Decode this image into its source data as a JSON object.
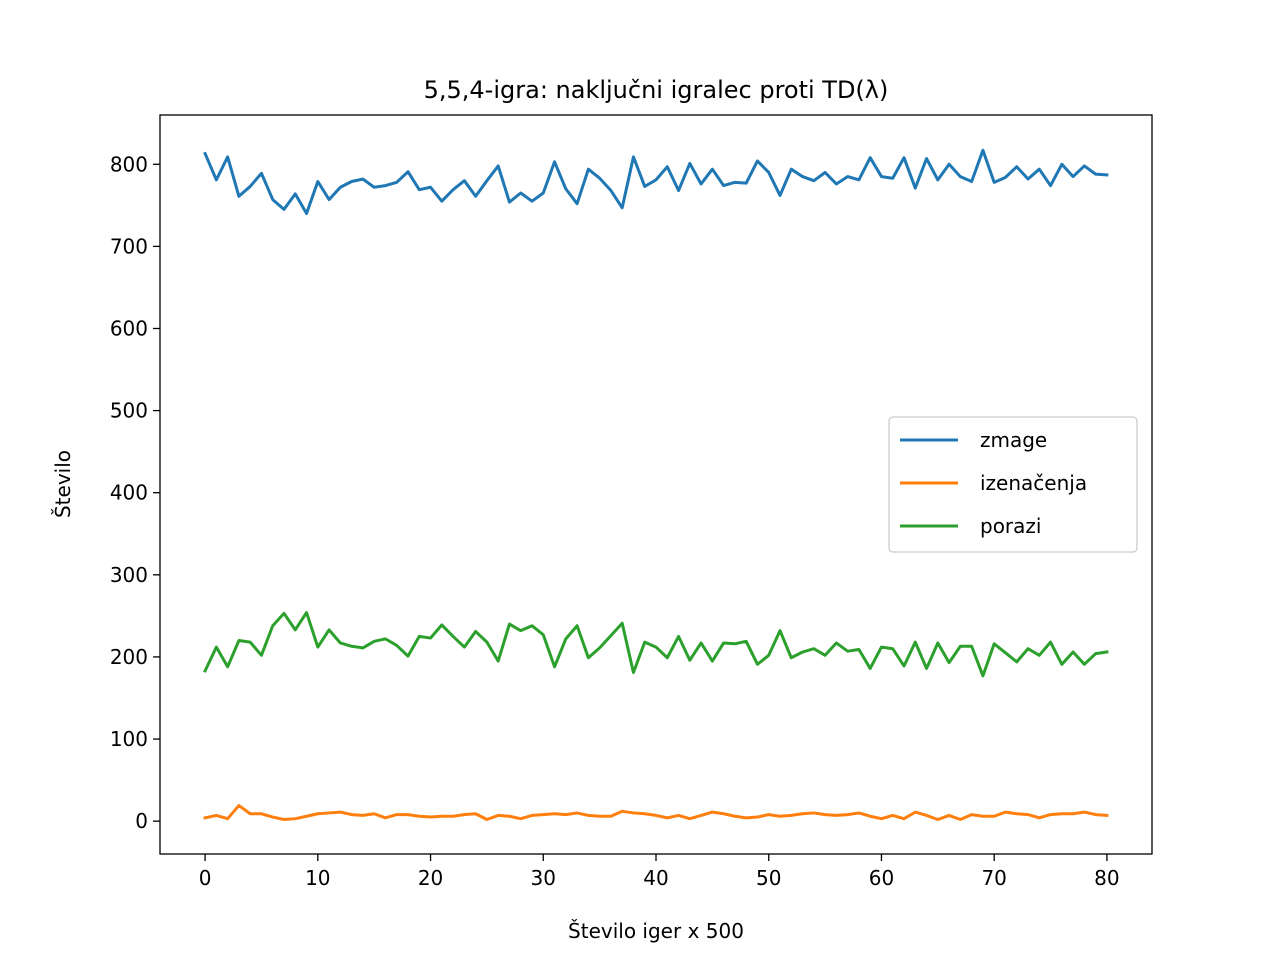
{
  "chart_data": {
    "type": "line",
    "title": "5,5,4-igra: naključni igralec proti TD(λ)",
    "xlabel": "Število iger x 500",
    "ylabel": "Število",
    "xlim": [
      -4,
      84
    ],
    "ylim": [
      -40,
      860
    ],
    "xticks": [
      0,
      10,
      20,
      30,
      40,
      50,
      60,
      70,
      80
    ],
    "yticks": [
      0,
      100,
      200,
      300,
      400,
      500,
      600,
      700,
      800
    ],
    "grid": false,
    "legend_position": "center-right",
    "series": [
      {
        "name": "zmage",
        "color": "#1f77b4",
        "values": [
          813,
          781,
          809,
          761,
          773,
          789,
          757,
          745,
          764,
          740,
          779,
          757,
          772,
          779,
          782,
          772,
          774,
          778,
          791,
          769,
          772,
          755,
          769,
          780,
          761,
          780,
          798,
          754,
          765,
          755,
          765,
          803,
          770,
          752,
          794,
          783,
          768,
          747,
          809,
          773,
          781,
          797,
          768,
          801,
          776,
          794,
          774,
          778,
          777,
          804,
          790,
          762,
          794,
          785,
          780,
          790,
          776,
          785,
          781,
          808,
          785,
          783,
          808,
          771,
          807,
          781,
          800,
          785,
          779,
          817,
          778,
          784,
          797,
          782,
          794,
          774,
          800,
          785,
          798,
          788,
          787
        ]
      },
      {
        "name": "izenačenja",
        "color": "#ff7f0e",
        "values": [
          4,
          7,
          3,
          19,
          9,
          9,
          5,
          2,
          3,
          6,
          9,
          10,
          11,
          8,
          7,
          9,
          4,
          8,
          8,
          6,
          5,
          6,
          6,
          8,
          9,
          2,
          7,
          6,
          3,
          7,
          8,
          9,
          8,
          10,
          7,
          6,
          6,
          12,
          10,
          9,
          7,
          4,
          7,
          3,
          7,
          11,
          9,
          6,
          4,
          5,
          8,
          6,
          7,
          9,
          10,
          8,
          7,
          8,
          10,
          6,
          3,
          7,
          3,
          11,
          7,
          2,
          7,
          2,
          8,
          6,
          6,
          11,
          9,
          8,
          4,
          8,
          9,
          9,
          11,
          8,
          7
        ]
      },
      {
        "name": "porazi",
        "color": "#2ca02c",
        "values": [
          183,
          212,
          188,
          220,
          218,
          202,
          238,
          253,
          233,
          254,
          212,
          233,
          217,
          213,
          211,
          219,
          222,
          214,
          201,
          225,
          223,
          239,
          225,
          212,
          231,
          218,
          195,
          240,
          232,
          238,
          227,
          188,
          222,
          238,
          199,
          211,
          226,
          241,
          181,
          218,
          212,
          199,
          225,
          196,
          217,
          195,
          217,
          216,
          219,
          191,
          202,
          232,
          199,
          206,
          210,
          202,
          217,
          207,
          209,
          186,
          212,
          210,
          189,
          218,
          186,
          217,
          193,
          213,
          213,
          177,
          216,
          205,
          194,
          210,
          202,
          218,
          191,
          206,
          191,
          204,
          206
        ]
      }
    ]
  }
}
